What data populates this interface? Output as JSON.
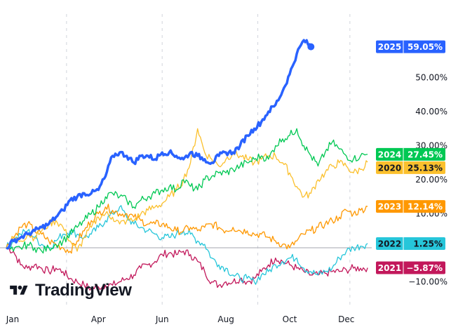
{
  "chart_data": {
    "type": "line",
    "title": "",
    "xlabel": "",
    "ylabel": "",
    "x_unit": "week of year",
    "xlim": [
      0,
      52
    ],
    "ylim": [
      -12,
      62
    ],
    "grid": "vertical dashed",
    "zero_line": 0,
    "x_ticks": [
      {
        "label": "Jan",
        "week": 0
      },
      {
        "label": "Apr",
        "week": 13
      },
      {
        "label": "Jun",
        "week": 22
      },
      {
        "label": "Aug",
        "week": 31
      },
      {
        "label": "Oct",
        "week": 40
      },
      {
        "label": "Dec",
        "week": 48
      }
    ],
    "x_gridlines_week": [
      8.5,
      22,
      35.5,
      48.5
    ],
    "y_ticks": [
      {
        "label": "50.00%",
        "value": 50
      },
      {
        "label": "40.00%",
        "value": 40
      },
      {
        "label": "30.00%",
        "value": 30
      },
      {
        "label": "20.00%",
        "value": 20
      },
      {
        "label": "10.00%",
        "value": 10
      },
      {
        "label": "−10.00%",
        "value": -10
      }
    ],
    "series": [
      {
        "name": "2021",
        "color": "#c2185b",
        "last_label": "−5.87%",
        "last_value": -5.87,
        "bold": false,
        "values": [
          0,
          -1,
          -5,
          -6,
          -5,
          -6,
          -7,
          -6,
          -7,
          -9,
          -10,
          -11,
          -12,
          -11.5,
          -11,
          -11,
          -10,
          -9,
          -8,
          -6,
          -5,
          -4,
          -2,
          -1.5,
          -2,
          -1,
          -2,
          -4,
          -7,
          -10,
          -11,
          -10,
          -10,
          -9,
          -10,
          -9,
          -7,
          -5,
          -3,
          -4,
          -5,
          -6,
          -7,
          -8,
          -8,
          -7.5,
          -7,
          -7,
          -6.5,
          -6,
          -6,
          -5.87
        ]
      },
      {
        "name": "2022",
        "color": "#26c6da",
        "last_label": "1.25%",
        "last_value": 1.25,
        "bold": false,
        "values": [
          0,
          2,
          4,
          5,
          3,
          1,
          0,
          2,
          4,
          5,
          4,
          3,
          4,
          6,
          8,
          10,
          12,
          9,
          7,
          6,
          5,
          4,
          3,
          3,
          4,
          5,
          4,
          2,
          1,
          -3,
          -5,
          -6,
          -8,
          -9,
          -9,
          -10,
          -8,
          -7,
          -5,
          -4,
          -3,
          -3,
          -6,
          -7,
          -8,
          -7,
          -6,
          -3,
          -1,
          0,
          0.5,
          1.25
        ]
      },
      {
        "name": "2023",
        "color": "#ff9800",
        "last_label": "12.14%",
        "last_value": 12.14,
        "bold": false,
        "values": [
          0,
          3,
          6,
          7,
          5,
          4,
          2,
          1,
          0,
          -1,
          2,
          5,
          8,
          10,
          12,
          11,
          10,
          10,
          9,
          8,
          7,
          7,
          7,
          6,
          5,
          5,
          6,
          5,
          6,
          7,
          6,
          5,
          6,
          5,
          5,
          4,
          4,
          3,
          2,
          1,
          0,
          2,
          4,
          5,
          6,
          7,
          8,
          9,
          11,
          10,
          11,
          12.14
        ]
      },
      {
        "name": "2020",
        "color": "#fbc02d",
        "last_label": "25.13%",
        "last_value": 25.13,
        "bold": false,
        "values": [
          0,
          3,
          2,
          4,
          3,
          5,
          7,
          8,
          6,
          2,
          -1,
          3,
          6,
          9,
          10,
          9,
          7,
          8,
          8,
          10,
          11,
          12,
          13,
          15,
          17,
          20,
          25,
          35,
          28,
          26,
          24,
          26,
          28,
          27,
          26,
          25,
          26,
          27,
          27,
          25,
          22,
          18,
          15,
          16,
          20,
          22,
          24,
          25,
          24,
          22,
          23,
          25.13
        ]
      },
      {
        "name": "2024",
        "color": "#00c853",
        "last_label": "27.45%",
        "last_value": 27.45,
        "bold": false,
        "values": [
          0,
          -1,
          0,
          1,
          0,
          -1,
          0,
          1,
          2,
          4,
          6,
          8,
          10,
          12,
          15,
          16,
          15,
          14,
          12,
          14,
          15,
          16,
          17,
          18,
          17,
          20,
          18,
          17,
          20,
          21,
          22,
          22,
          23,
          24,
          25,
          26,
          27,
          26,
          30,
          32,
          33,
          35,
          30,
          27,
          24,
          28,
          31,
          29,
          27,
          26,
          27,
          27.45
        ]
      },
      {
        "name": "2025",
        "color": "#2962ff",
        "last_label": "59.05%",
        "last_value": 59.05,
        "bold": true,
        "values": [
          0,
          2,
          3,
          4,
          5,
          6,
          7,
          9,
          11,
          14,
          15,
          16,
          16,
          17,
          21,
          27,
          28,
          27,
          25,
          27,
          27,
          26,
          28,
          28,
          27,
          26,
          28,
          27,
          26,
          25,
          27,
          28,
          28,
          30,
          33,
          35,
          37,
          40,
          42,
          46,
          51,
          57,
          61,
          59.05
        ]
      }
    ]
  },
  "branding": {
    "logo_text": "TradingView"
  }
}
